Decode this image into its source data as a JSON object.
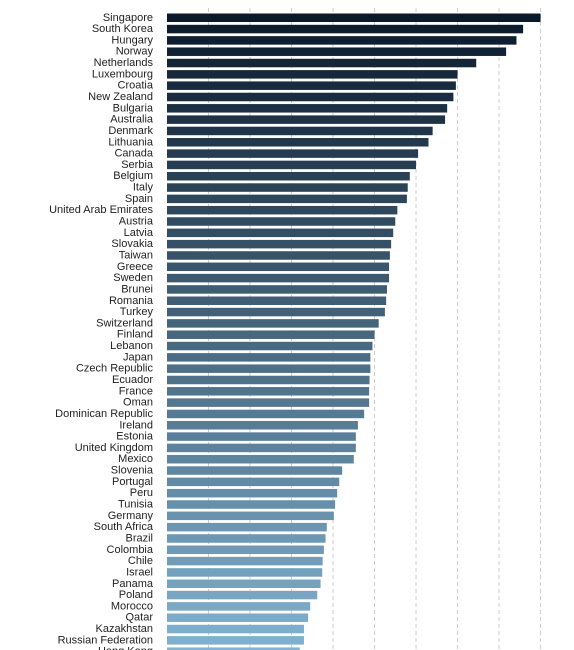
{
  "chart_data": {
    "type": "bar",
    "orientation": "horizontal",
    "categories": [
      "Singapore",
      "South Korea",
      "Hungary",
      "Norway",
      "Netherlands",
      "Luxembourg",
      "Croatia",
      "New Zealand",
      "Bulgaria",
      "Australia",
      "Denmark",
      "Lithuania",
      "Canada",
      "Serbia",
      "Belgium",
      "Italy",
      "Spain",
      "United Arab Emirates",
      "Austria",
      "Latvia",
      "Slovakia",
      "Taiwan",
      "Greece",
      "Sweden",
      "Brunei",
      "Romania",
      "Turkey",
      "Switzerland",
      "Finland",
      "Lebanon",
      "Japan",
      "Czech Republic",
      "Ecuador",
      "France",
      "Oman",
      "Dominican Republic",
      "Ireland",
      "Estonia",
      "United Kingdom",
      "Mexico",
      "Slovenia",
      "Portugal",
      "Peru",
      "Tunisia",
      "Germany",
      "South Africa",
      "Brazil",
      "Colombia",
      "Chile",
      "Israel",
      "Panama",
      "Poland",
      "Morocco",
      "Qatar",
      "Kazakhstan",
      "Russian Federation",
      "Hong Kong"
    ],
    "values": [
      9.0,
      8.58,
      8.42,
      8.17,
      7.45,
      7.0,
      6.96,
      6.9,
      6.75,
      6.7,
      6.4,
      6.3,
      6.05,
      6.0,
      5.85,
      5.8,
      5.78,
      5.55,
      5.5,
      5.45,
      5.4,
      5.37,
      5.35,
      5.35,
      5.3,
      5.28,
      5.25,
      5.1,
      5.0,
      4.95,
      4.9,
      4.9,
      4.88,
      4.87,
      4.87,
      4.75,
      4.6,
      4.55,
      4.55,
      4.5,
      4.22,
      4.15,
      4.1,
      4.05,
      4.02,
      3.85,
      3.82,
      3.78,
      3.75,
      3.74,
      3.7,
      3.62,
      3.45,
      3.4,
      3.3,
      3.3,
      3.2
    ],
    "xlim": [
      0,
      9.3
    ],
    "x_gridlines": [
      0,
      1,
      2,
      3,
      4,
      5,
      6,
      7,
      8,
      9
    ],
    "grid": true,
    "legend": "none",
    "color_range": [
      "#0b1a2b",
      "#82b3d1"
    ],
    "title": "",
    "xlabel": "",
    "ylabel": ""
  }
}
